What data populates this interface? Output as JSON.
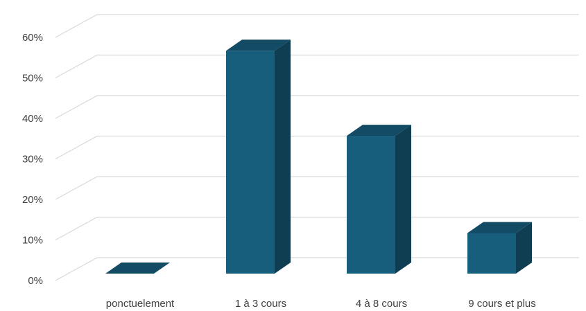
{
  "chart_data": {
    "type": "bar",
    "style": "3d-column",
    "categories": [
      "ponctuelement",
      "1 à 3 cours",
      "4 à 8 cours",
      "9 cours et plus"
    ],
    "values": [
      0,
      55,
      34,
      10
    ],
    "unit": "%",
    "ylim": [
      0,
      60
    ],
    "yticks": [
      "0%",
      "10%",
      "20%",
      "30%",
      "40%",
      "50%",
      "60%"
    ],
    "grid": true,
    "legend": "none",
    "colors": {
      "front": "#175d7c",
      "side": "#0f3d51",
      "top": "#134b64",
      "grid": "#d9d9d9"
    }
  }
}
